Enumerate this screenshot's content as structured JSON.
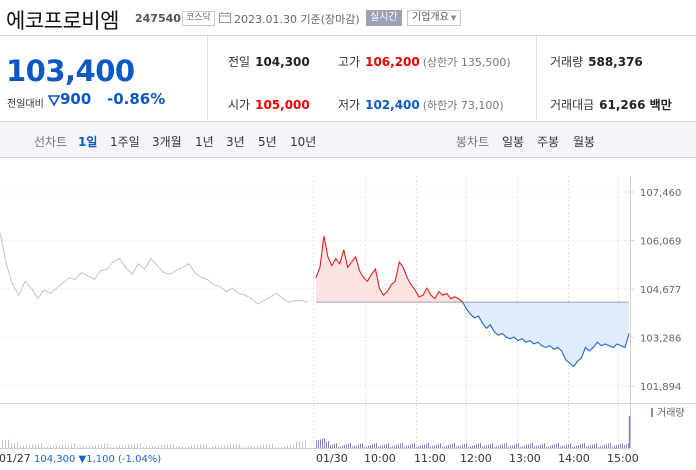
{
  "header": {
    "name": "에코프로비엠",
    "code": "247540",
    "market": "코스닥",
    "date_text": "2023.01.30 기준(장마감)",
    "realtime_label": "실시간",
    "overview_label": "기업개요"
  },
  "price": {
    "current": "103,400",
    "change_label": "전일대비",
    "change": "900",
    "change_pct": "-0.86%",
    "direction": "down"
  },
  "stats": {
    "prev_label": "전일",
    "prev": "104,300",
    "high_label": "고가",
    "high": "106,200",
    "upper_limit": "(상한가 135,500)",
    "volume_label": "거래량",
    "volume": "588,376",
    "open_label": "시가",
    "open": "105,000",
    "low_label": "저가",
    "low": "102,400",
    "lower_limit": "(하한가 73,100)",
    "amount_label": "거래대금",
    "amount": "61,266 백만"
  },
  "tabs": {
    "line_chart": "선차트",
    "periods": [
      "1일",
      "1주일",
      "3개월",
      "1년",
      "3년",
      "5년",
      "10년"
    ],
    "active_period": "1일",
    "candle_chart": "봉차트",
    "candle_periods": [
      "일봉",
      "주봉",
      "월봉"
    ]
  },
  "chart_data": {
    "type": "line",
    "y_ticks": [
      "107,460",
      "106,069",
      "104,677",
      "103,286",
      "101,894"
    ],
    "y_tick_values": [
      107460,
      106069,
      104677,
      103286,
      101894
    ],
    "x_labels": [
      "01/27",
      "01/30",
      "10:00",
      "11:00",
      "12:00",
      "13:00",
      "14:00",
      "15:00"
    ],
    "volume_label": "거래량",
    "prev_close": 104300,
    "prev_day_label": "01/27",
    "prev_day_close": "104,300",
    "prev_day_change": "1,100",
    "prev_day_change_pct": "(-1.04%)",
    "colors": {
      "up": "#e02020",
      "down": "#1f65c9",
      "prev": "#c4c4c4",
      "up_fill": "#fbe3e3",
      "down_fill": "#e1ecfa",
      "volume": "#8b84c8"
    },
    "prev_day_series": [
      106300,
      105400,
      104800,
      104500,
      104900,
      104700,
      104400,
      104650,
      104550,
      104700,
      104850,
      105000,
      104950,
      105150,
      105050,
      104950,
      105200,
      105250,
      105450,
      105550,
      105300,
      105100,
      105400,
      105250,
      105550,
      105350,
      105150,
      105100,
      105200,
      105300,
      105400,
      105150,
      105000,
      104950,
      104800,
      104750,
      104600,
      104700,
      104550,
      104500,
      104400,
      104250,
      104350,
      104450,
      104550,
      104400,
      104300,
      104350,
      104350,
      104300
    ],
    "today_series": [
      105000,
      105300,
      106200,
      105600,
      105350,
      105550,
      105400,
      105800,
      105300,
      105450,
      105600,
      105200,
      105000,
      104900,
      105100,
      105250,
      104700,
      104500,
      104600,
      104800,
      104900,
      105450,
      105300,
      105000,
      104800,
      104650,
      104450,
      104500,
      104700,
      104500,
      104400,
      104600,
      104500,
      104550,
      104400,
      104450,
      104400,
      104300,
      104100,
      103950,
      103850,
      103900,
      103700,
      103550,
      103650,
      103450,
      103350,
      103400,
      103300,
      103250,
      103300,
      103200,
      103250,
      103150,
      103200,
      103100,
      103150,
      103050,
      103000,
      103050,
      102950,
      103000,
      102900,
      102650,
      102550,
      102450,
      102600,
      102700,
      103000,
      102900,
      103000,
      103150,
      103050,
      103100,
      103050,
      103000,
      103100,
      103050,
      103000,
      103400
    ]
  }
}
